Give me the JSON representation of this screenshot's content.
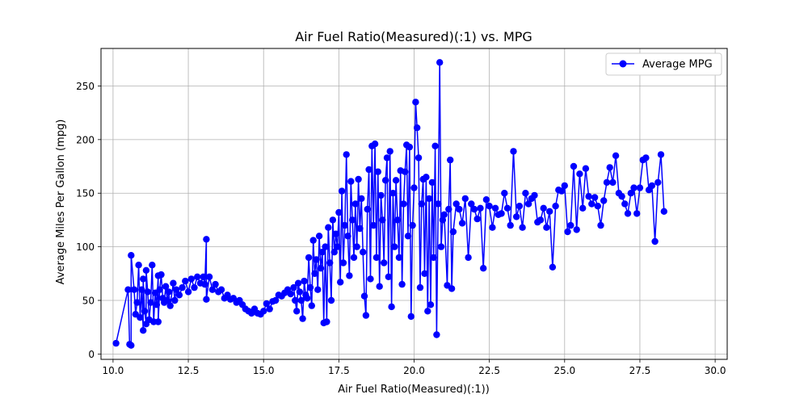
{
  "chart_data": {
    "type": "line",
    "title": "Air Fuel Ratio(Measured)(:1) vs. MPG",
    "xlabel": "Air Fuel Ratio(Measured)(:1))",
    "ylabel": "Average Miles Per Gallon (mpg)",
    "xlim": [
      9.6,
      30.4
    ],
    "ylim": [
      -5,
      285
    ],
    "xticks": [
      {
        "value": 10.0,
        "label": "10.0"
      },
      {
        "value": 12.5,
        "label": "12.5"
      },
      {
        "value": 15.0,
        "label": "15.0"
      },
      {
        "value": 17.5,
        "label": "17.5"
      },
      {
        "value": 20.0,
        "label": "20.0"
      },
      {
        "value": 22.5,
        "label": "22.5"
      },
      {
        "value": 25.0,
        "label": "25.0"
      },
      {
        "value": 27.5,
        "label": "27.5"
      },
      {
        "value": 30.0,
        "label": "30.0"
      }
    ],
    "yticks": [
      {
        "value": 0,
        "label": "0"
      },
      {
        "value": 50,
        "label": "50"
      },
      {
        "value": 100,
        "label": "100"
      },
      {
        "value": 150,
        "label": "150"
      },
      {
        "value": 200,
        "label": "200"
      },
      {
        "value": 250,
        "label": "250"
      }
    ],
    "grid": true,
    "legend_position": "top-right",
    "series": [
      {
        "name": "Average MPG",
        "color": "#0000ff",
        "marker": "circle",
        "points": [
          [
            10.1,
            10
          ],
          [
            10.5,
            60
          ],
          [
            10.55,
            9
          ],
          [
            10.6,
            8
          ],
          [
            10.6,
            92
          ],
          [
            10.7,
            60
          ],
          [
            10.75,
            37
          ],
          [
            10.8,
            48
          ],
          [
            10.85,
            83
          ],
          [
            10.9,
            34
          ],
          [
            10.95,
            60
          ],
          [
            11.0,
            22
          ],
          [
            11.0,
            70
          ],
          [
            11.05,
            40
          ],
          [
            11.1,
            28
          ],
          [
            11.1,
            78
          ],
          [
            11.15,
            58
          ],
          [
            11.2,
            32
          ],
          [
            11.25,
            48
          ],
          [
            11.3,
            83
          ],
          [
            11.35,
            30
          ],
          [
            11.4,
            57
          ],
          [
            11.45,
            46
          ],
          [
            11.5,
            73
          ],
          [
            11.5,
            30
          ],
          [
            11.55,
            60
          ],
          [
            11.6,
            74
          ],
          [
            11.65,
            52
          ],
          [
            11.7,
            48
          ],
          [
            11.75,
            63
          ],
          [
            11.8,
            50
          ],
          [
            11.85,
            58
          ],
          [
            11.9,
            45
          ],
          [
            12.0,
            66
          ],
          [
            12.05,
            50
          ],
          [
            12.1,
            60
          ],
          [
            12.2,
            55
          ],
          [
            12.3,
            62
          ],
          [
            12.4,
            68
          ],
          [
            12.5,
            58
          ],
          [
            12.6,
            70
          ],
          [
            12.7,
            62
          ],
          [
            12.8,
            72
          ],
          [
            12.9,
            66
          ],
          [
            13.0,
            72
          ],
          [
            13.05,
            65
          ],
          [
            13.1,
            107
          ],
          [
            13.1,
            51
          ],
          [
            13.2,
            72
          ],
          [
            13.3,
            60
          ],
          [
            13.4,
            65
          ],
          [
            13.5,
            58
          ],
          [
            13.6,
            60
          ],
          [
            13.7,
            52
          ],
          [
            13.8,
            55
          ],
          [
            13.9,
            51
          ],
          [
            14.0,
            52
          ],
          [
            14.1,
            48
          ],
          [
            14.2,
            50
          ],
          [
            14.3,
            46
          ],
          [
            14.4,
            42
          ],
          [
            14.5,
            40
          ],
          [
            14.6,
            38
          ],
          [
            14.7,
            42
          ],
          [
            14.8,
            38
          ],
          [
            14.9,
            37
          ],
          [
            15.0,
            40
          ],
          [
            15.1,
            47
          ],
          [
            15.2,
            42
          ],
          [
            15.3,
            49
          ],
          [
            15.4,
            50
          ],
          [
            15.5,
            55
          ],
          [
            15.6,
            54
          ],
          [
            15.7,
            57
          ],
          [
            15.8,
            60
          ],
          [
            15.9,
            56
          ],
          [
            16.0,
            62
          ],
          [
            16.05,
            50
          ],
          [
            16.1,
            40
          ],
          [
            16.15,
            66
          ],
          [
            16.2,
            58
          ],
          [
            16.25,
            50
          ],
          [
            16.3,
            33
          ],
          [
            16.35,
            68
          ],
          [
            16.4,
            55
          ],
          [
            16.45,
            52
          ],
          [
            16.5,
            90
          ],
          [
            16.55,
            62
          ],
          [
            16.6,
            45
          ],
          [
            16.65,
            106
          ],
          [
            16.7,
            75
          ],
          [
            16.75,
            88
          ],
          [
            16.8,
            60
          ],
          [
            16.85,
            110
          ],
          [
            16.9,
            80
          ],
          [
            16.95,
            95
          ],
          [
            17.0,
            29
          ],
          [
            17.05,
            100
          ],
          [
            17.1,
            30
          ],
          [
            17.15,
            118
          ],
          [
            17.2,
            85
          ],
          [
            17.25,
            50
          ],
          [
            17.3,
            125
          ],
          [
            17.35,
            95
          ],
          [
            17.4,
            112
          ],
          [
            17.45,
            100
          ],
          [
            17.5,
            132
          ],
          [
            17.55,
            67
          ],
          [
            17.6,
            152
          ],
          [
            17.65,
            85
          ],
          [
            17.7,
            120
          ],
          [
            17.75,
            186
          ],
          [
            17.8,
            110
          ],
          [
            17.85,
            73
          ],
          [
            17.9,
            161
          ],
          [
            17.95,
            125
          ],
          [
            18.0,
            90
          ],
          [
            18.05,
            140
          ],
          [
            18.1,
            100
          ],
          [
            18.15,
            163
          ],
          [
            18.2,
            117
          ],
          [
            18.25,
            145
          ],
          [
            18.3,
            95
          ],
          [
            18.35,
            54
          ],
          [
            18.4,
            36
          ],
          [
            18.45,
            135
          ],
          [
            18.5,
            172
          ],
          [
            18.55,
            70
          ],
          [
            18.6,
            194
          ],
          [
            18.65,
            120
          ],
          [
            18.7,
            196
          ],
          [
            18.75,
            90
          ],
          [
            18.8,
            170
          ],
          [
            18.85,
            63
          ],
          [
            18.9,
            148
          ],
          [
            18.95,
            125
          ],
          [
            19.0,
            85
          ],
          [
            19.05,
            162
          ],
          [
            19.1,
            183
          ],
          [
            19.15,
            72
          ],
          [
            19.2,
            189
          ],
          [
            19.25,
            44
          ],
          [
            19.3,
            150
          ],
          [
            19.35,
            100
          ],
          [
            19.4,
            162
          ],
          [
            19.45,
            125
          ],
          [
            19.5,
            90
          ],
          [
            19.55,
            171
          ],
          [
            19.6,
            65
          ],
          [
            19.65,
            140
          ],
          [
            19.7,
            170
          ],
          [
            19.75,
            195
          ],
          [
            19.8,
            110
          ],
          [
            19.85,
            193
          ],
          [
            19.9,
            35
          ],
          [
            19.95,
            120
          ],
          [
            20.0,
            155
          ],
          [
            20.05,
            235
          ],
          [
            20.1,
            211
          ],
          [
            20.15,
            183
          ],
          [
            20.2,
            62
          ],
          [
            20.25,
            140
          ],
          [
            20.3,
            163
          ],
          [
            20.35,
            75
          ],
          [
            20.4,
            165
          ],
          [
            20.45,
            40
          ],
          [
            20.5,
            145
          ],
          [
            20.55,
            46
          ],
          [
            20.6,
            160
          ],
          [
            20.65,
            90
          ],
          [
            20.7,
            194
          ],
          [
            20.75,
            18
          ],
          [
            20.8,
            140
          ],
          [
            20.85,
            272
          ],
          [
            20.9,
            100
          ],
          [
            20.95,
            125
          ],
          [
            21.0,
            130
          ],
          [
            21.1,
            64
          ],
          [
            21.15,
            135
          ],
          [
            21.2,
            181
          ],
          [
            21.25,
            61
          ],
          [
            21.3,
            114
          ],
          [
            21.4,
            140
          ],
          [
            21.5,
            135
          ],
          [
            21.6,
            122
          ],
          [
            21.7,
            145
          ],
          [
            21.8,
            90
          ],
          [
            21.9,
            140
          ],
          [
            22.0,
            135
          ],
          [
            22.1,
            126
          ],
          [
            22.2,
            136
          ],
          [
            22.3,
            80
          ],
          [
            22.4,
            144
          ],
          [
            22.5,
            138
          ],
          [
            22.6,
            118
          ],
          [
            22.7,
            136
          ],
          [
            22.8,
            130
          ],
          [
            22.9,
            131
          ],
          [
            23.0,
            150
          ],
          [
            23.1,
            136
          ],
          [
            23.2,
            120
          ],
          [
            23.3,
            189
          ],
          [
            23.4,
            128
          ],
          [
            23.5,
            138
          ],
          [
            23.6,
            118
          ],
          [
            23.7,
            150
          ],
          [
            23.8,
            140
          ],
          [
            23.9,
            145
          ],
          [
            24.0,
            148
          ],
          [
            24.1,
            123
          ],
          [
            24.2,
            125
          ],
          [
            24.3,
            136
          ],
          [
            24.4,
            118
          ],
          [
            24.5,
            133
          ],
          [
            24.6,
            81
          ],
          [
            24.7,
            138
          ],
          [
            24.8,
            153
          ],
          [
            24.9,
            152
          ],
          [
            25.0,
            157
          ],
          [
            25.1,
            114
          ],
          [
            25.2,
            120
          ],
          [
            25.3,
            175
          ],
          [
            25.4,
            116
          ],
          [
            25.5,
            168
          ],
          [
            25.6,
            136
          ],
          [
            25.7,
            173
          ],
          [
            25.8,
            147
          ],
          [
            25.9,
            140
          ],
          [
            26.0,
            146
          ],
          [
            26.1,
            138
          ],
          [
            26.2,
            120
          ],
          [
            26.3,
            143
          ],
          [
            26.4,
            160
          ],
          [
            26.5,
            174
          ],
          [
            26.6,
            160
          ],
          [
            26.7,
            185
          ],
          [
            26.8,
            150
          ],
          [
            26.9,
            147
          ],
          [
            27.0,
            140
          ],
          [
            27.1,
            131
          ],
          [
            27.2,
            150
          ],
          [
            27.3,
            155
          ],
          [
            27.4,
            131
          ],
          [
            27.5,
            155
          ],
          [
            27.6,
            181
          ],
          [
            27.7,
            183
          ],
          [
            27.8,
            153
          ],
          [
            27.9,
            157
          ],
          [
            28.0,
            105
          ],
          [
            28.1,
            160
          ],
          [
            28.2,
            186
          ],
          [
            28.3,
            133
          ]
        ]
      }
    ]
  }
}
